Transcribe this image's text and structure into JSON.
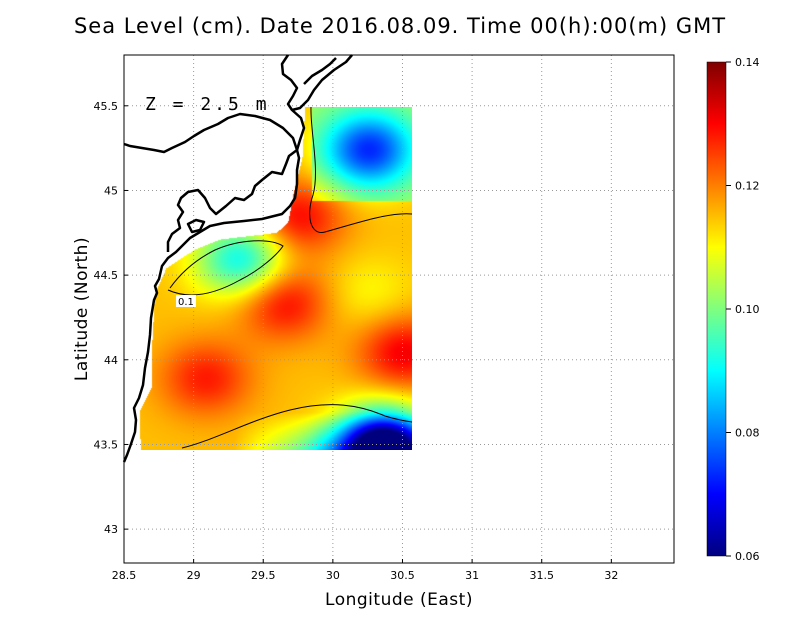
{
  "title": "Sea Level (cm). Date 2016.08.09. Time 00(h):00(m) GMT",
  "annotation": "Z = 2.5 m",
  "contour_label": "0.1",
  "chart_data": {
    "type": "heatmap",
    "title": "Sea Level (cm). Date 2016.08.09. Time 00(h):00(m) GMT",
    "xlabel": "Longitude (East)",
    "ylabel": "Latitude (North)",
    "xlim": [
      28.5,
      32.45
    ],
    "ylim": [
      42.8,
      45.8
    ],
    "xticks": [
      "28.5",
      "29",
      "29.5",
      "30",
      "30.5",
      "31",
      "31.5",
      "32"
    ],
    "yticks": [
      "43",
      "43.5",
      "44",
      "44.5",
      "45",
      "45.5"
    ],
    "grid": true,
    "colorbar": {
      "min": 0.06,
      "max": 0.14,
      "ticks": [
        "0.06",
        "0.08",
        "0.10",
        "0.12",
        "0.14"
      ],
      "colors": [
        "#00007f",
        "#0000ff",
        "#007fff",
        "#00ffff",
        "#7fff7f",
        "#ffff00",
        "#ff7f00",
        "#ff0000",
        "#7f0000"
      ]
    },
    "field_extent": {
      "lon": [
        28.63,
        30.55
      ],
      "lat": [
        43.48,
        45.5
      ]
    },
    "field_features": [
      {
        "kind": "minimum",
        "lon": 30.25,
        "lat": 45.25,
        "value": 0.085
      },
      {
        "kind": "minimum",
        "lon": 29.35,
        "lat": 44.6,
        "value": 0.09
      },
      {
        "kind": "maximum",
        "lon": 29.65,
        "lat": 44.35,
        "value": 0.13
      },
      {
        "kind": "maximum",
        "lon": 29.1,
        "lat": 43.9,
        "value": 0.128
      },
      {
        "kind": "maximum",
        "lon": 30.5,
        "lat": 44.05,
        "value": 0.131
      },
      {
        "kind": "local-low",
        "lon": 30.25,
        "lat": 44.4,
        "value": 0.11
      },
      {
        "kind": "minimum",
        "lon": 30.35,
        "lat": 43.5,
        "value": 0.06
      },
      {
        "kind": "maximum",
        "lon": 29.75,
        "lat": 44.85,
        "value": 0.13
      }
    ]
  }
}
